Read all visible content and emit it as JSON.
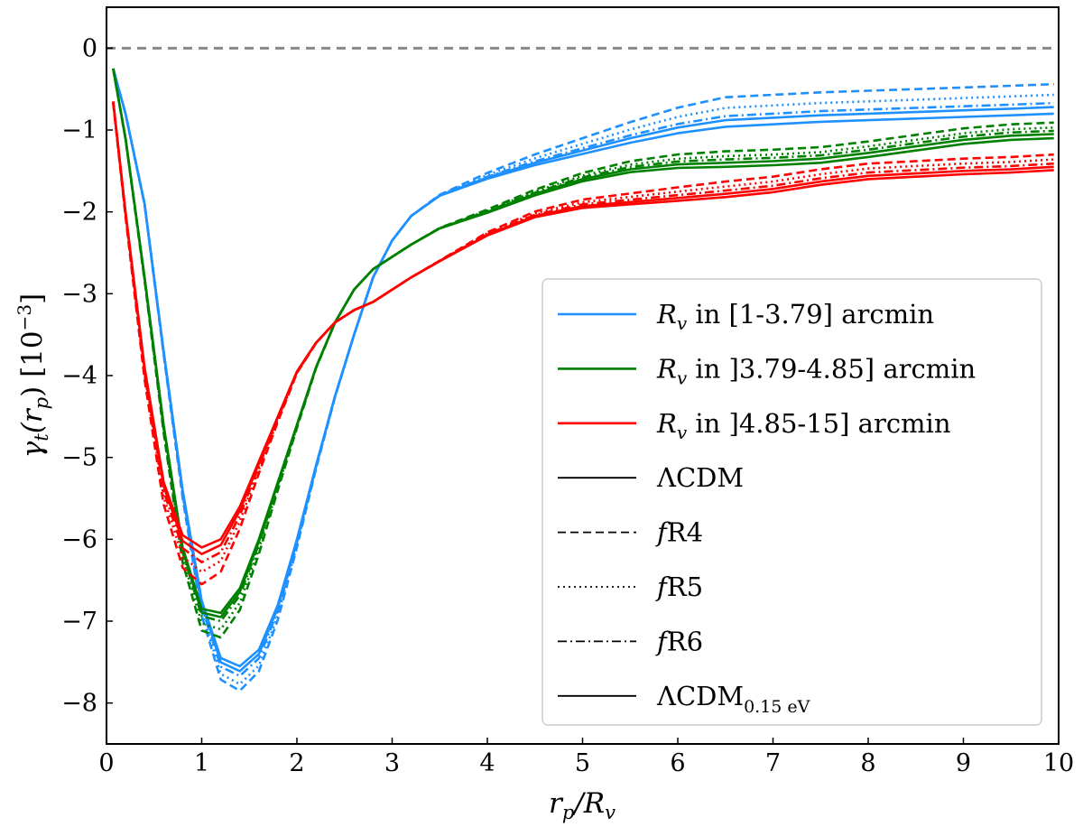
{
  "chart_data": {
    "type": "line",
    "title": "",
    "xlabel": "r_p/R_v",
    "ylabel": "γ_t(r_p) [10^-3]",
    "xlim": [
      0,
      10
    ],
    "ylim": [
      -8.5,
      0.5
    ],
    "xticks": [
      0,
      1,
      2,
      3,
      4,
      5,
      6,
      7,
      8,
      9,
      10
    ],
    "yticks": [
      0,
      -1,
      -2,
      -3,
      -4,
      -5,
      -6,
      -7,
      -8
    ],
    "reference_line": {
      "y": 0,
      "style": "dashed",
      "color": "#888888"
    },
    "legend_position": "lower-right",
    "groups": [
      {
        "label": "R_v in [1-3.79] arcmin",
        "color": "#1e90ff",
        "x": [
          0.07,
          0.2,
          0.4,
          0.6,
          0.8,
          1.0,
          1.2,
          1.4,
          1.6,
          1.8,
          2.0,
          2.2,
          2.4,
          2.6,
          2.8,
          3.0,
          3.2,
          3.5,
          4.0,
          4.5,
          5.0,
          5.5,
          6.0,
          6.5,
          7.0,
          7.5,
          8.0,
          8.5,
          9.0,
          9.5,
          9.95
        ],
        "base": [
          -0.25,
          -0.8,
          -1.9,
          -3.7,
          -5.4,
          -6.75,
          -7.45,
          -7.55,
          -7.35,
          -6.8,
          -6.0,
          -5.1,
          -4.25,
          -3.5,
          -2.8,
          -2.35,
          -2.05,
          -1.8,
          -1.58,
          -1.4,
          -1.25,
          -1.1,
          -0.97,
          -0.88,
          -0.85,
          -0.82,
          -0.8,
          -0.78,
          -0.76,
          -0.74,
          -0.72
        ],
        "series": [
          {
            "name": "ΛCDM",
            "dash": "solid",
            "offset": 0.0,
            "tail": 0.0
          },
          {
            "name": "fR4",
            "dash": "dashed",
            "offset": -0.3,
            "tail": 0.28
          },
          {
            "name": "fR5",
            "dash": "dotted",
            "offset": -0.22,
            "tail": 0.15
          },
          {
            "name": "fR6",
            "dash": "dashdot",
            "offset": -0.12,
            "tail": 0.05
          },
          {
            "name": "ΛCDM_0.15eV",
            "dash": "solid",
            "offset": -0.06,
            "tail": -0.08
          }
        ]
      },
      {
        "label": "R_v in ]3.79-4.85] arcmin",
        "color": "#008000",
        "x": [
          0.07,
          0.2,
          0.4,
          0.6,
          0.8,
          1.0,
          1.2,
          1.4,
          1.6,
          1.8,
          2.0,
          2.2,
          2.4,
          2.6,
          2.8,
          3.0,
          3.2,
          3.5,
          4.0,
          4.5,
          5.0,
          5.5,
          6.0,
          6.5,
          7.0,
          7.5,
          8.0,
          8.5,
          9.0,
          9.5,
          9.95
        ],
        "base": [
          -0.25,
          -1.1,
          -2.8,
          -4.6,
          -6.1,
          -6.85,
          -6.9,
          -6.6,
          -6.0,
          -5.3,
          -4.6,
          -3.9,
          -3.35,
          -2.95,
          -2.7,
          -2.55,
          -2.4,
          -2.2,
          -2.0,
          -1.78,
          -1.6,
          -1.48,
          -1.42,
          -1.4,
          -1.38,
          -1.35,
          -1.28,
          -1.2,
          -1.12,
          -1.07,
          -1.05
        ],
        "series": [
          {
            "name": "ΛCDM",
            "dash": "solid",
            "offset": 0.0,
            "tail": 0.0
          },
          {
            "name": "fR4",
            "dash": "dashed",
            "offset": -0.3,
            "tail": 0.14
          },
          {
            "name": "fR5",
            "dash": "dotted",
            "offset": -0.2,
            "tail": 0.08
          },
          {
            "name": "fR6",
            "dash": "dashdot",
            "offset": -0.1,
            "tail": 0.04
          },
          {
            "name": "ΛCDM_0.15eV",
            "dash": "solid",
            "offset": -0.05,
            "tail": -0.05
          }
        ]
      },
      {
        "label": "R_v in ]4.85-15] arcmin",
        "color": "#ff0000",
        "x": [
          0.07,
          0.2,
          0.4,
          0.6,
          0.8,
          1.0,
          1.2,
          1.4,
          1.6,
          1.8,
          2.0,
          2.2,
          2.4,
          2.6,
          2.8,
          3.0,
          3.2,
          3.5,
          4.0,
          4.5,
          5.0,
          5.5,
          6.0,
          6.5,
          7.0,
          7.5,
          8.0,
          8.5,
          9.0,
          9.5,
          9.95
        ],
        "base": [
          -0.65,
          -2.0,
          -3.9,
          -5.3,
          -5.95,
          -6.1,
          -6.0,
          -5.6,
          -5.05,
          -4.5,
          -3.95,
          -3.6,
          -3.35,
          -3.2,
          -3.1,
          -2.95,
          -2.8,
          -2.6,
          -2.28,
          -2.05,
          -1.93,
          -1.88,
          -1.83,
          -1.78,
          -1.72,
          -1.63,
          -1.56,
          -1.53,
          -1.5,
          -1.48,
          -1.45
        ],
        "series": [
          {
            "name": "ΛCDM",
            "dash": "solid",
            "offset": 0.0,
            "tail": 0.0
          },
          {
            "name": "fR4",
            "dash": "dashed",
            "offset": -0.45,
            "tail": 0.15
          },
          {
            "name": "fR5",
            "dash": "dotted",
            "offset": -0.3,
            "tail": 0.09
          },
          {
            "name": "fR6",
            "dash": "dashdot",
            "offset": -0.18,
            "tail": 0.04
          },
          {
            "name": "ΛCDM_0.15eV",
            "dash": "solid",
            "offset": -0.08,
            "tail": -0.04
          }
        ]
      }
    ],
    "legend": {
      "colors": [
        {
          "label_main": "R",
          "label_sub": "v",
          "label_rest": " in [1-3.79] arcmin",
          "color": "#1e90ff"
        },
        {
          "label_main": "R",
          "label_sub": "v",
          "label_rest": " in ]3.79-4.85] arcmin",
          "color": "#008000"
        },
        {
          "label_main": "R",
          "label_sub": "v",
          "label_rest": " in ]4.85-15] arcmin",
          "color": "#ff0000"
        }
      ],
      "styles": [
        {
          "label_main": "ΛCDM",
          "label_sub": "",
          "dash": "solid"
        },
        {
          "label_main": "fR4",
          "label_sub": "",
          "dash": "dashed"
        },
        {
          "label_main": "fR5",
          "label_sub": "",
          "dash": "dotted"
        },
        {
          "label_main": "fR6",
          "label_sub": "",
          "dash": "dashdot"
        },
        {
          "label_main": "ΛCDM",
          "label_sub": "0.15 eV",
          "dash": "solid"
        }
      ]
    },
    "axis_text": {
      "xlabel_main": "r",
      "xlabel_sub": "p",
      "xlabel_rest": "/R",
      "xlabel_sub2": "v",
      "ylabel_main": "γ",
      "ylabel_sub": "t",
      "ylabel_mid": "(r",
      "ylabel_sub2": "p",
      "ylabel_rest": ") [10",
      "ylabel_sup": "−3",
      "ylabel_end": "]"
    }
  }
}
